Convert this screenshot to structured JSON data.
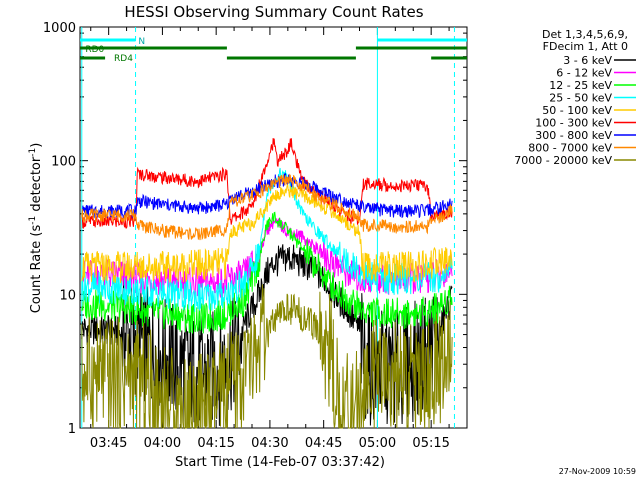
{
  "chart_data": {
    "type": "line",
    "title": "HESSI Observing Summary Count Rates",
    "xlabel": "Start Time (14-Feb-07 03:37:42)",
    "ylabel_main": "Count Rate (s",
    "ylabel_sup1": "-1",
    "ylabel_mid": " detector",
    "ylabel_sup2": "-1",
    "ylabel_end": ")",
    "x_range_minutes": [
      -8,
      100
    ],
    "y_range": [
      1,
      1000
    ],
    "y_scale": "log",
    "x_ticks": [
      {
        "t": 0,
        "label": "03:45"
      },
      {
        "t": 15,
        "label": "04:00"
      },
      {
        "t": 30,
        "label": "04:15"
      },
      {
        "t": 45,
        "label": "04:30"
      },
      {
        "t": 60,
        "label": "04:45"
      },
      {
        "t": 75,
        "label": "05:00"
      },
      {
        "t": 90,
        "label": "05:15"
      }
    ],
    "y_ticks": [
      {
        "v": 1,
        "label": "1"
      },
      {
        "v": 10,
        "label": "10"
      },
      {
        "v": 100,
        "label": "100"
      },
      {
        "v": 1000,
        "label": "1000"
      }
    ],
    "legend_header": [
      "Det 1,3,4,5,6,9,",
      "FDecim 1, Att 0"
    ],
    "series": [
      {
        "name": "3 - 6 keV",
        "color": "#000000",
        "x": [
          -7.5,
          2,
          5,
          10,
          15,
          20,
          26,
          27,
          32,
          36,
          38,
          42,
          44,
          46,
          50,
          52,
          56,
          60,
          62,
          66,
          70,
          71,
          74,
          80,
          84,
          88,
          92,
          96
        ],
        "y": [
          5.5,
          5.3,
          4.8,
          4.2,
          3.5,
          3.0,
          2.5,
          2.6,
          3.0,
          4.0,
          6,
          10,
          14,
          17,
          19,
          18,
          16,
          13,
          11,
          8,
          5.5,
          3.2,
          2.8,
          2.8,
          3.0,
          3.5,
          5.0,
          10
        ]
      },
      {
        "name": "6 - 12 keV",
        "color": "#ff00ff",
        "x": [
          -7.5,
          3,
          10,
          18,
          26,
          32,
          38,
          42,
          44,
          46,
          50,
          54,
          58,
          62,
          66,
          70,
          71,
          78,
          86,
          92,
          96
        ],
        "y": [
          14,
          14,
          13,
          12.5,
          12,
          12.5,
          14,
          20,
          30,
          35,
          30,
          27,
          22,
          18,
          15,
          13,
          13,
          13,
          13,
          14,
          16
        ]
      },
      {
        "name": "12 - 25 keV",
        "color": "#00ff00",
        "x": [
          -7.5,
          3,
          10,
          18,
          26,
          32,
          38,
          42,
          44,
          46,
          50,
          54,
          58,
          62,
          66,
          70,
          71,
          78,
          86,
          92,
          96
        ],
        "y": [
          8.5,
          8,
          7.5,
          7.0,
          6.5,
          7.0,
          9,
          18,
          32,
          38,
          30,
          22,
          16,
          12,
          9.5,
          8,
          7.5,
          7.2,
          7.2,
          8,
          10
        ]
      },
      {
        "name": "25 - 50 keV",
        "color": "#00ffff",
        "x": [
          -7.5,
          3,
          10,
          18,
          26,
          32,
          38,
          42,
          44,
          46,
          48,
          50,
          52,
          54,
          58,
          62,
          66,
          70,
          71,
          78,
          86,
          92,
          96
        ],
        "y": [
          11.5,
          11,
          10.5,
          10,
          9.5,
          10,
          12,
          20,
          55,
          70,
          80,
          75,
          55,
          40,
          30,
          23,
          18,
          15,
          14,
          13,
          13,
          13.5,
          16
        ]
      },
      {
        "name": "50 - 100 keV",
        "color": "#ffcc00",
        "x": [
          -7.5,
          7.5,
          8,
          15,
          25,
          33,
          34,
          40,
          44,
          46,
          50,
          54,
          58,
          62,
          66,
          70,
          71,
          80,
          89,
          90,
          96
        ],
        "y": [
          16,
          16,
          16.5,
          16,
          16.5,
          17,
          29,
          34,
          45,
          55,
          60,
          55,
          48,
          42,
          35,
          29,
          16,
          16,
          16,
          17,
          18
        ]
      },
      {
        "name": "100 - 300 keV",
        "color": "#ff0000",
        "x": [
          -7.5,
          7.5,
          8,
          15,
          25,
          33,
          34,
          40,
          43,
          46,
          47,
          49,
          51,
          53,
          54,
          58,
          62,
          66,
          70,
          71,
          80,
          89,
          90,
          96
        ],
        "y": [
          35,
          35,
          80,
          75,
          70,
          80,
          36,
          45,
          80,
          140,
          100,
          110,
          135,
          85,
          70,
          58,
          48,
          40,
          35,
          68,
          65,
          65,
          38,
          42
        ]
      },
      {
        "name": "300 - 800 keV",
        "color": "#0000ff",
        "x": [
          -7.5,
          7.5,
          8,
          15,
          25,
          33,
          34,
          40,
          44,
          46,
          50,
          54,
          58,
          62,
          66,
          70,
          71,
          80,
          89,
          90,
          96
        ],
        "y": [
          42,
          42,
          50,
          47,
          44,
          47,
          52,
          58,
          65,
          70,
          72,
          68,
          62,
          55,
          50,
          46,
          44,
          42,
          42,
          43,
          47
        ]
      },
      {
        "name": "800 - 7000 keV",
        "color": "#ff8800",
        "x": [
          -7.5,
          7.5,
          8,
          15,
          25,
          33,
          34,
          40,
          44,
          46,
          50,
          54,
          58,
          62,
          66,
          70,
          71,
          80,
          89,
          90,
          96
        ],
        "y": [
          39,
          39,
          33,
          30,
          28,
          31,
          48,
          55,
          62,
          68,
          72,
          65,
          55,
          48,
          42,
          38,
          33,
          32,
          32,
          34,
          44
        ]
      },
      {
        "name": "7000 - 20000 keV",
        "color": "#888800",
        "x": [
          -7.5,
          3,
          10,
          15,
          20,
          26,
          30,
          36,
          40,
          43,
          46,
          50,
          52,
          54,
          58,
          62,
          64,
          66,
          70,
          72,
          76,
          80,
          84,
          88,
          92,
          96
        ],
        "y": [
          2.5,
          2.4,
          2.2,
          1.6,
          1.4,
          1.3,
          1.5,
          2.2,
          3.0,
          4.5,
          6,
          8,
          7.5,
          7,
          5.5,
          3.5,
          1.6,
          1.3,
          1.4,
          2.3,
          2.3,
          2.3,
          2.3,
          2.3,
          2.6,
          4.5
        ]
      }
    ],
    "annotations": {
      "flag_labels": [
        "RD0",
        "RD4",
        "N"
      ],
      "flag_rows": [
        {
          "label": "N",
          "color": "#00ffff",
          "segments": [
            [
              -8,
              7.5
            ],
            [
              75,
              100
            ]
          ]
        },
        {
          "label": "RD0",
          "color": "#007700",
          "segments": [
            [
              -8,
              33
            ],
            [
              69,
              100
            ]
          ]
        },
        {
          "label": "RD4",
          "color": "#007700",
          "segments": [
            [
              -8,
              -1
            ],
            [
              33,
              69
            ],
            [
              90,
              100
            ]
          ]
        }
      ],
      "vlines_solid": [
        -7.5,
        75
      ],
      "vlines_dashed": [
        7.5,
        96.5
      ],
      "vline_color": "#00ffff"
    },
    "legend_placement": "right",
    "grid": false
  },
  "footer_timestamp": "27-Nov-2009 10:59"
}
